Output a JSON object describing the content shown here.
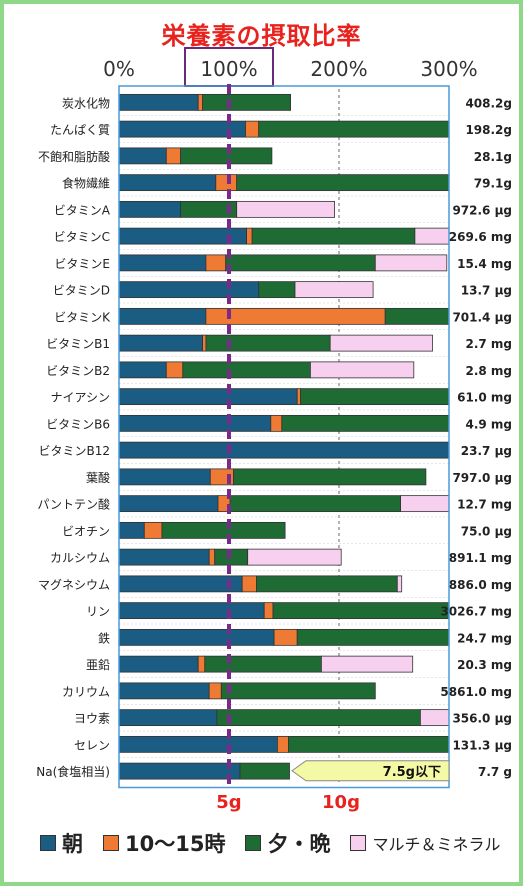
{
  "chart_data": {
    "type": "bar",
    "title": "栄養素の摂取比率",
    "stacked": true,
    "orientation": "horizontal",
    "xlim": [
      0,
      300
    ],
    "xticks": [
      "0%",
      "100%",
      "200%",
      "300%"
    ],
    "categories": [
      "炭水化物",
      "たんぱく質",
      "不飽和脂肪酸",
      "食物繊維",
      "ビタミンA",
      "ビタミンC",
      "ビタミンE",
      "ビタミンD",
      "ビタミンK",
      "ビタミンB1",
      "ビタミンB2",
      "ナイアシン",
      "ビタミンB6",
      "ビタミンB12",
      "葉酸",
      "パントテン酸",
      "ビオチン",
      "カルシウム",
      "マグネシウム",
      "リン",
      "鉄",
      "亜鉛",
      "カリウム",
      "ヨウ素",
      "セレン",
      "Na(食塩相当)"
    ],
    "amounts": [
      "408.2g",
      "198.2g",
      "28.1g",
      "79.1g",
      "972.6 µg",
      "269.6 mg",
      "15.4 mg",
      "13.7 µg",
      "701.4 µg",
      "2.7 mg",
      "2.8 mg",
      "61.0 mg",
      "4.9 mg",
      "23.7 µg",
      "797.0 µg",
      "12.7 mg",
      "75.0 µg",
      "891.1 mg",
      "886.0 mg",
      "3026.7 mg",
      "24.7 mg",
      "20.3 mg",
      "5861.0 mg",
      "356.0 µg",
      "131.3 µg",
      "7.7 g"
    ],
    "series": [
      {
        "name": "朝",
        "color": "#1b5c82",
        "values": [
          72,
          115,
          43,
          88,
          56,
          116,
          79,
          127,
          79,
          76,
          43,
          162,
          138,
          300,
          83,
          90,
          23,
          82,
          112,
          132,
          141,
          72,
          82,
          89,
          144,
          110
        ]
      },
      {
        "name": "10～15時",
        "color": "#ef7a34",
        "values": [
          4,
          12,
          13,
          19,
          0,
          5,
          18,
          0,
          163,
          3,
          15,
          3,
          10,
          0,
          21,
          11,
          16,
          5,
          13,
          8,
          21,
          6,
          11,
          0,
          10,
          0
        ]
      },
      {
        "name": "夕・晩",
        "color": "#1e6c34",
        "values": [
          80,
          173,
          83,
          193,
          51,
          148,
          136,
          33,
          58,
          113,
          116,
          135,
          152,
          0,
          175,
          155,
          112,
          30,
          128,
          160,
          138,
          106,
          140,
          185,
          146,
          45
        ]
      },
      {
        "name": "マルチ＆ミネラル",
        "color": "#f7d0f0",
        "values": [
          0,
          0,
          0,
          0,
          89,
          31,
          65,
          71,
          0,
          93,
          94,
          0,
          0,
          0,
          0,
          46,
          0,
          85,
          4,
          0,
          0,
          83,
          0,
          28,
          0,
          0
        ]
      }
    ],
    "reference_line": {
      "value": 100,
      "label": "100%"
    },
    "salt_axis": {
      "labels": [
        "5g",
        "10g"
      ]
    },
    "annotation": "7.5g以下"
  }
}
